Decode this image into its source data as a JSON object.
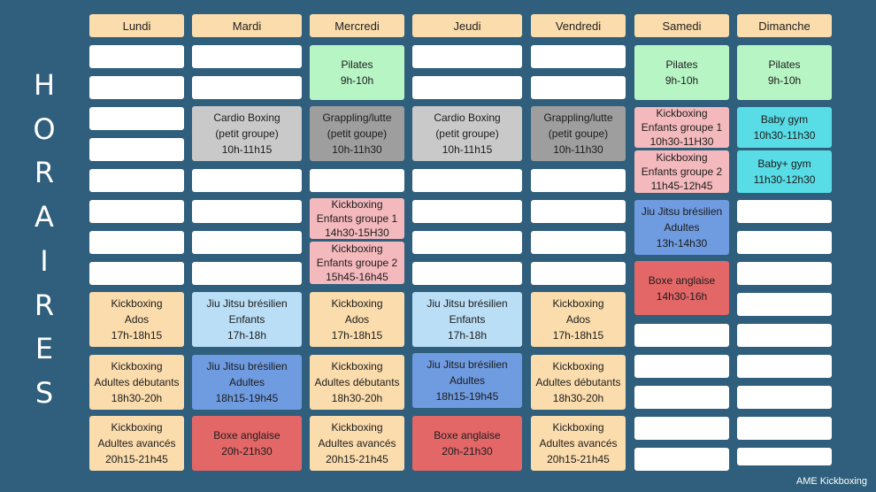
{
  "side_title": [
    "H",
    "O",
    "R",
    "A",
    "I",
    "R",
    "E",
    "S"
  ],
  "days": [
    "Lundi",
    "Mardi",
    "Mercredi",
    "Jeudi",
    "Vendredi",
    "Samedi",
    "Dimanche"
  ],
  "colors": {
    "peach": "#fbdcac",
    "gray": "#c9c9c9",
    "darkgray": "#9e9e9e",
    "pink": "#f4b9bd",
    "green": "#b8f5c5",
    "lightblue": "#b9def6",
    "blue": "#6f9be0",
    "red": "#e46767",
    "cyan": "#58dce6"
  },
  "classes": {
    "pilates": {
      "name": "Pilates",
      "time": "9h-10h"
    },
    "cardio_mardi": {
      "name": "Cardio Boxing",
      "sub": "(petit groupe)",
      "time": "10h-11h15"
    },
    "grappling_mer": {
      "name": "Grappling/lutte",
      "sub": "(petit goupe)",
      "time": "10h-11h30"
    },
    "cardio_jeudi": {
      "name": "Cardio Boxing",
      "sub": "(petit groupe)",
      "time": "10h-11h15"
    },
    "grappling_ven": {
      "name": "Grappling/lutte",
      "sub": "(petit goupe)",
      "time": "10h-11h30"
    },
    "kick_enf1_sam": {
      "name": "Kickboxing",
      "sub": "Enfants groupe 1",
      "time": "10h30-11H30"
    },
    "kick_enf2_sam": {
      "name": "Kickboxing",
      "sub": "Enfants groupe 2",
      "time": "11h45-12h45"
    },
    "babygym": {
      "name": "Baby gym",
      "time": "10h30-11h30"
    },
    "babyplus": {
      "name": "Baby+ gym",
      "time": "11h30-12h30"
    },
    "kick_enf1_mer": {
      "name": "Kickboxing",
      "sub": "Enfants groupe 1",
      "time": "14h30-15H30"
    },
    "kick_enf2_mer": {
      "name": "Kickboxing",
      "sub": "Enfants groupe 2",
      "time": "15h45-16h45"
    },
    "jjb_adultes_sam": {
      "name": "Jiu Jitsu brésilien",
      "sub": "Adultes",
      "time": "13h-14h30"
    },
    "boxe_sam": {
      "name": "Boxe anglaise",
      "time": "14h30-16h"
    },
    "kick_ados": {
      "name": "Kickboxing",
      "sub": "Ados",
      "time": "17h-18h15"
    },
    "jjb_enfants": {
      "name": "Jiu Jitsu brésilien",
      "sub": "Enfants",
      "time": "17h-18h"
    },
    "kick_debutants": {
      "name": "Kickboxing",
      "sub": "Adultes débutants",
      "time": "18h30-20h"
    },
    "jjb_adultes": {
      "name": "Jiu Jitsu brésilien",
      "sub": "Adultes",
      "time": "18h15-19h45"
    },
    "kick_avances": {
      "name": "Kickboxing",
      "sub": "Adultes avancés",
      "time": "20h15-21h45"
    },
    "boxe_soir": {
      "name": "Boxe anglaise",
      "time": "20h-21h30"
    }
  },
  "footer": "AME Kickboxing"
}
